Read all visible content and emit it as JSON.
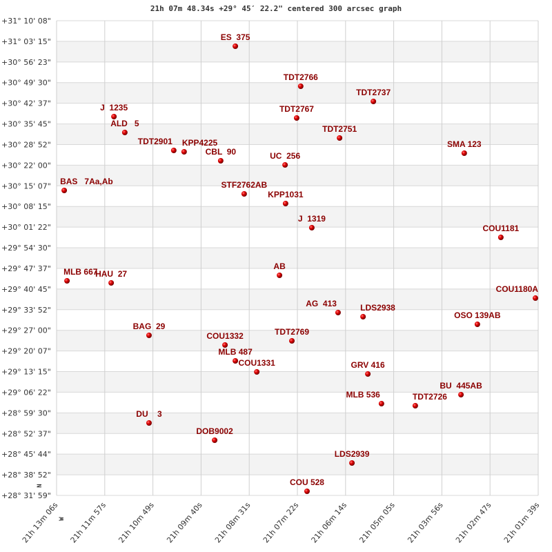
{
  "chart_data": {
    "type": "scatter",
    "title": "21h 07m 48.34s +29° 45′ 22.2\" centered 300 arcsec graph",
    "x_unit": "RA (hours)",
    "y_unit": "Dec (degrees)",
    "xlim": [
      21.21833,
      21.0275
    ],
    "ylim": [
      28.53306,
      31.16889
    ],
    "grid": true,
    "x_tick_labels": [
      "21h 13m 06s",
      "21h 11m 57s",
      "21h 10m 49s",
      "21h 09m 40s",
      "21h 08m 31s",
      "21h 07m 22s",
      "21h 06m 14s",
      "21h 05m 05s",
      "21h 03m 56s",
      "21h 02m 47s",
      "21h 01m 39s"
    ],
    "y_tick_labels": [
      "+31° 10' 08\"",
      "+31° 03' 15\"",
      "+30° 56' 23\"",
      "+30° 49' 30\"",
      "+30° 42' 37\"",
      "+30° 35' 45\"",
      "+30° 28' 52\"",
      "+30° 22' 00\"",
      "+30° 15' 07\"",
      "+30° 08' 15\"",
      "+30° 01' 22\"",
      "+29° 54' 30\"",
      "+29° 47' 37\"",
      "+29° 40' 45\"",
      "+29° 33' 52\"",
      "+29° 27' 00\"",
      "+29° 20' 07\"",
      "+29° 13' 15\"",
      "+29° 06' 22\"",
      "+28° 59' 30\"",
      "+28° 52' 37\"",
      "+28° 45' 44\"",
      "+28° 38' 52\"",
      "+28° 31' 59\""
    ],
    "compass": {
      "north": "N",
      "west": "W"
    },
    "point_color": "#e00000",
    "label_color": "#8b0000",
    "band_color": "#f3f3f3",
    "points": [
      {
        "name": "ES  375",
        "ra": 21.1475,
        "dec": 31.0271
      },
      {
        "name": "TDT2766",
        "ra": 21.1216,
        "dec": 30.8049
      },
      {
        "name": "TDT2737",
        "ra": 21.0928,
        "dec": 30.7206
      },
      {
        "name": "J  1235",
        "ra": 21.1956,
        "dec": 30.6363
      },
      {
        "name": "TDT2767",
        "ra": 21.1232,
        "dec": 30.6287
      },
      {
        "name": "ALD   5",
        "ra": 21.1913,
        "dec": 30.5482
      },
      {
        "name": "TDT2751",
        "ra": 21.1062,
        "dec": 30.5176
      },
      {
        "name": "TDT2901",
        "ra": 21.1719,
        "dec": 30.4486
      },
      {
        "name": "KPP4225",
        "ra": 21.1678,
        "dec": 30.441
      },
      {
        "name": "SMA 123",
        "ra": 21.0568,
        "dec": 30.4333
      },
      {
        "name": "CBL  90",
        "ra": 21.1533,
        "dec": 30.3912
      },
      {
        "name": "UC  256",
        "ra": 21.1278,
        "dec": 30.3682
      },
      {
        "name": "BAS   7Aa,Ab",
        "ra": 21.2153,
        "dec": 30.2264
      },
      {
        "name": "STF2762AB",
        "ra": 21.144,
        "dec": 30.2073
      },
      {
        "name": "KPP1031",
        "ra": 21.1276,
        "dec": 30.1536
      },
      {
        "name": "J  1319",
        "ra": 21.1172,
        "dec": 30.0195
      },
      {
        "name": "COU1181",
        "ra": 21.0423,
        "dec": 29.9659
      },
      {
        "name": "AB",
        "ra": 21.13,
        "dec": 29.7552
      },
      {
        "name": "MLB 667",
        "ra": 21.2142,
        "dec": 29.7245
      },
      {
        "name": "HAU  27",
        "ra": 21.1967,
        "dec": 29.713
      },
      {
        "name": "COU1180A",
        "ra": 21.0286,
        "dec": 29.6287
      },
      {
        "name": "AG  413",
        "ra": 21.1068,
        "dec": 29.5483
      },
      {
        "name": "LDS2938",
        "ra": 21.0969,
        "dec": 29.5253
      },
      {
        "name": "OSO 139AB",
        "ra": 21.0516,
        "dec": 29.4832
      },
      {
        "name": "BAG  29",
        "ra": 21.1817,
        "dec": 29.4219
      },
      {
        "name": "TDT2769",
        "ra": 21.1251,
        "dec": 29.3912
      },
      {
        "name": "COU1332",
        "ra": 21.1516,
        "dec": 29.3682
      },
      {
        "name": "MLB 487",
        "ra": 21.1475,
        "dec": 29.2801
      },
      {
        "name": "COU1331",
        "ra": 21.139,
        "dec": 29.2188
      },
      {
        "name": "GRV 416",
        "ra": 21.095,
        "dec": 29.2073
      },
      {
        "name": "BU  445AB",
        "ra": 21.0581,
        "dec": 29.0924
      },
      {
        "name": "MLB 536",
        "ra": 21.0896,
        "dec": 29.0426
      },
      {
        "name": "TDT2726",
        "ra": 21.0762,
        "dec": 29.0311
      },
      {
        "name": "DU    3",
        "ra": 21.1817,
        "dec": 28.9353
      },
      {
        "name": "DOB9002",
        "ra": 21.1557,
        "dec": 28.8395
      },
      {
        "name": "LDS2939",
        "ra": 21.1013,
        "dec": 28.7131
      },
      {
        "name": "COU 528",
        "ra": 21.1191,
        "dec": 28.556
      }
    ]
  }
}
